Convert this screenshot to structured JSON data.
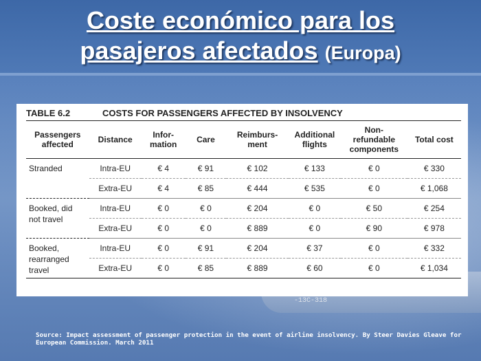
{
  "title": {
    "line1": "Coste económico para los",
    "line2": "pasajeros afectados",
    "region": "(Europa)"
  },
  "table": {
    "number": "TABLE 6.2",
    "caption": "COSTS FOR PASSENGERS AFFECTED BY INSOLVENCY",
    "headers": [
      [
        "Passengers",
        "affected"
      ],
      [
        "Distance"
      ],
      [
        "Infor-",
        "mation"
      ],
      [
        "Care"
      ],
      [
        "Reimburs-",
        "ment"
      ],
      [
        "Additional",
        "flights"
      ],
      [
        "Non-",
        "refundable",
        "components"
      ],
      [
        "Total cost"
      ]
    ],
    "groups": [
      {
        "label": [
          "Stranded"
        ],
        "rows": [
          [
            "Intra-EU",
            "€ 4",
            "€ 91",
            "€ 102",
            "€ 133",
            "€ 0",
            "€ 330"
          ],
          [
            "Extra-EU",
            "€ 4",
            "€ 85",
            "€ 444",
            "€ 535",
            "€ 0",
            "€ 1,068"
          ]
        ]
      },
      {
        "label": [
          "Booked, did",
          "not travel"
        ],
        "rows": [
          [
            "Intra-EU",
            "€ 0",
            "€ 0",
            "€ 204",
            "€ 0",
            "€ 50",
            "€ 254"
          ],
          [
            "Extra-EU",
            "€ 0",
            "€ 0",
            "€ 889",
            "€ 0",
            "€ 90",
            "€ 978"
          ]
        ]
      },
      {
        "label": [
          "Booked,",
          "rearranged",
          "travel"
        ],
        "rows": [
          [
            "Intra-EU",
            "€ 0",
            "€ 91",
            "€ 204",
            "€ 37",
            "€ 0",
            "€ 332"
          ],
          [
            "Extra-EU",
            "€ 0",
            "€ 85",
            "€ 889",
            "€ 60",
            "€ 0",
            "€ 1,034"
          ]
        ]
      }
    ]
  },
  "background": {
    "registration_mark": "-13C-318"
  },
  "source": "Source: Impact assessment of passenger protection in the event of airline insolvency. By Steer Davies Gleave for European Commission. March 2011"
}
